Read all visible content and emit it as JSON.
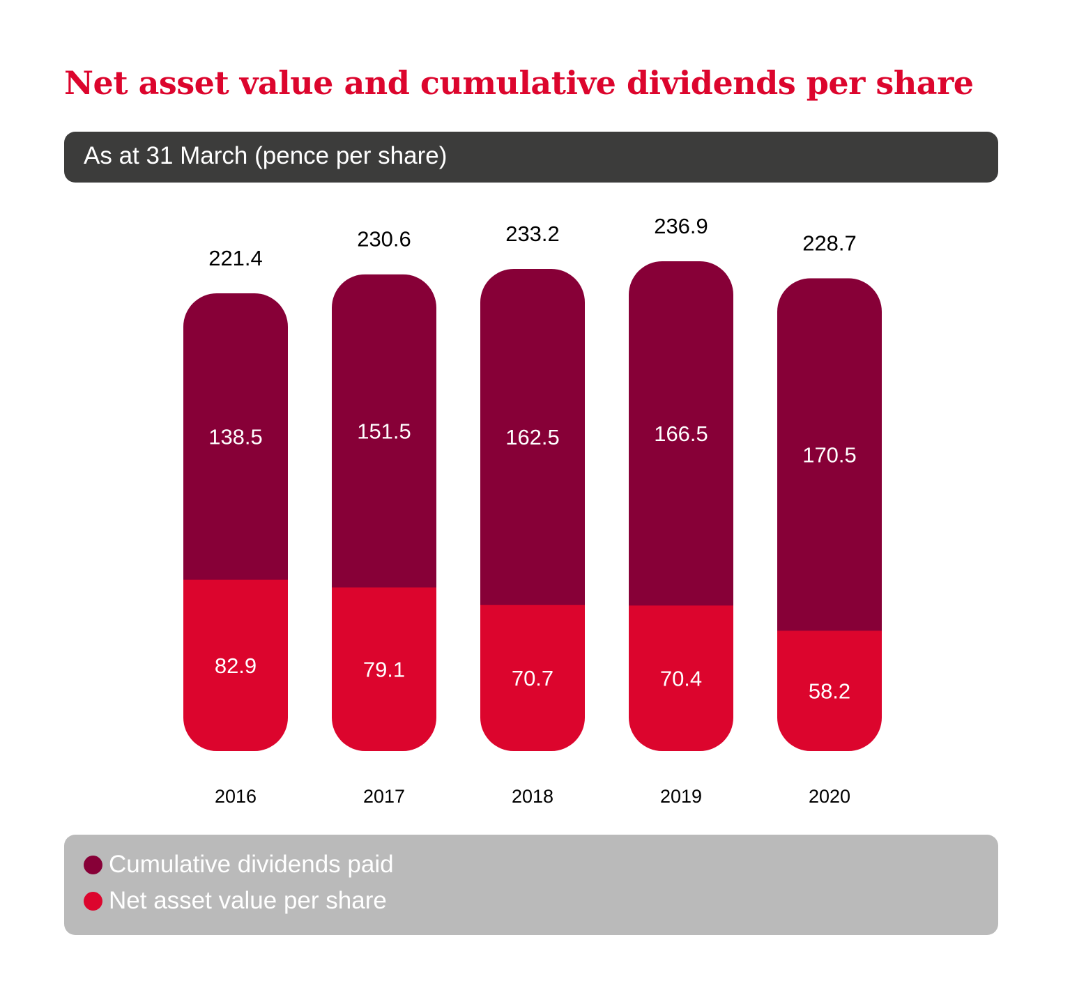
{
  "title": "Net asset value and cumulative dividends per share",
  "subtitle": "As at 31 March (pence per share)",
  "colors": {
    "title": "#dc052d",
    "dividends": "#870037",
    "nav": "#dc052d",
    "subtitle_bg": "#3c3c3b",
    "legend_bg": "#bababa"
  },
  "legend": {
    "items": [
      {
        "label": "Cumulative dividends paid",
        "color": "#870037"
      },
      {
        "label": "Net asset value per share",
        "color": "#dc052d"
      }
    ]
  },
  "chart_data": {
    "type": "bar",
    "stacked": true,
    "title": "Net asset value and cumulative dividends per share",
    "subtitle": "As at 31 March (pence per share)",
    "xlabel": "",
    "ylabel": "pence per share",
    "categories": [
      "2016",
      "2017",
      "2018",
      "2019",
      "2020"
    ],
    "series": [
      {
        "name": "Net asset value per share",
        "color": "#dc052d",
        "values": [
          82.9,
          79.1,
          70.7,
          70.4,
          58.2
        ]
      },
      {
        "name": "Cumulative dividends paid",
        "color": "#870037",
        "values": [
          138.5,
          151.5,
          162.5,
          166.5,
          170.5
        ]
      }
    ],
    "totals": [
      221.4,
      230.6,
      233.2,
      236.9,
      228.7
    ],
    "ylim": [
      0,
      236.9
    ],
    "grid": false,
    "axes_visible": false,
    "legend_position": "bottom"
  }
}
